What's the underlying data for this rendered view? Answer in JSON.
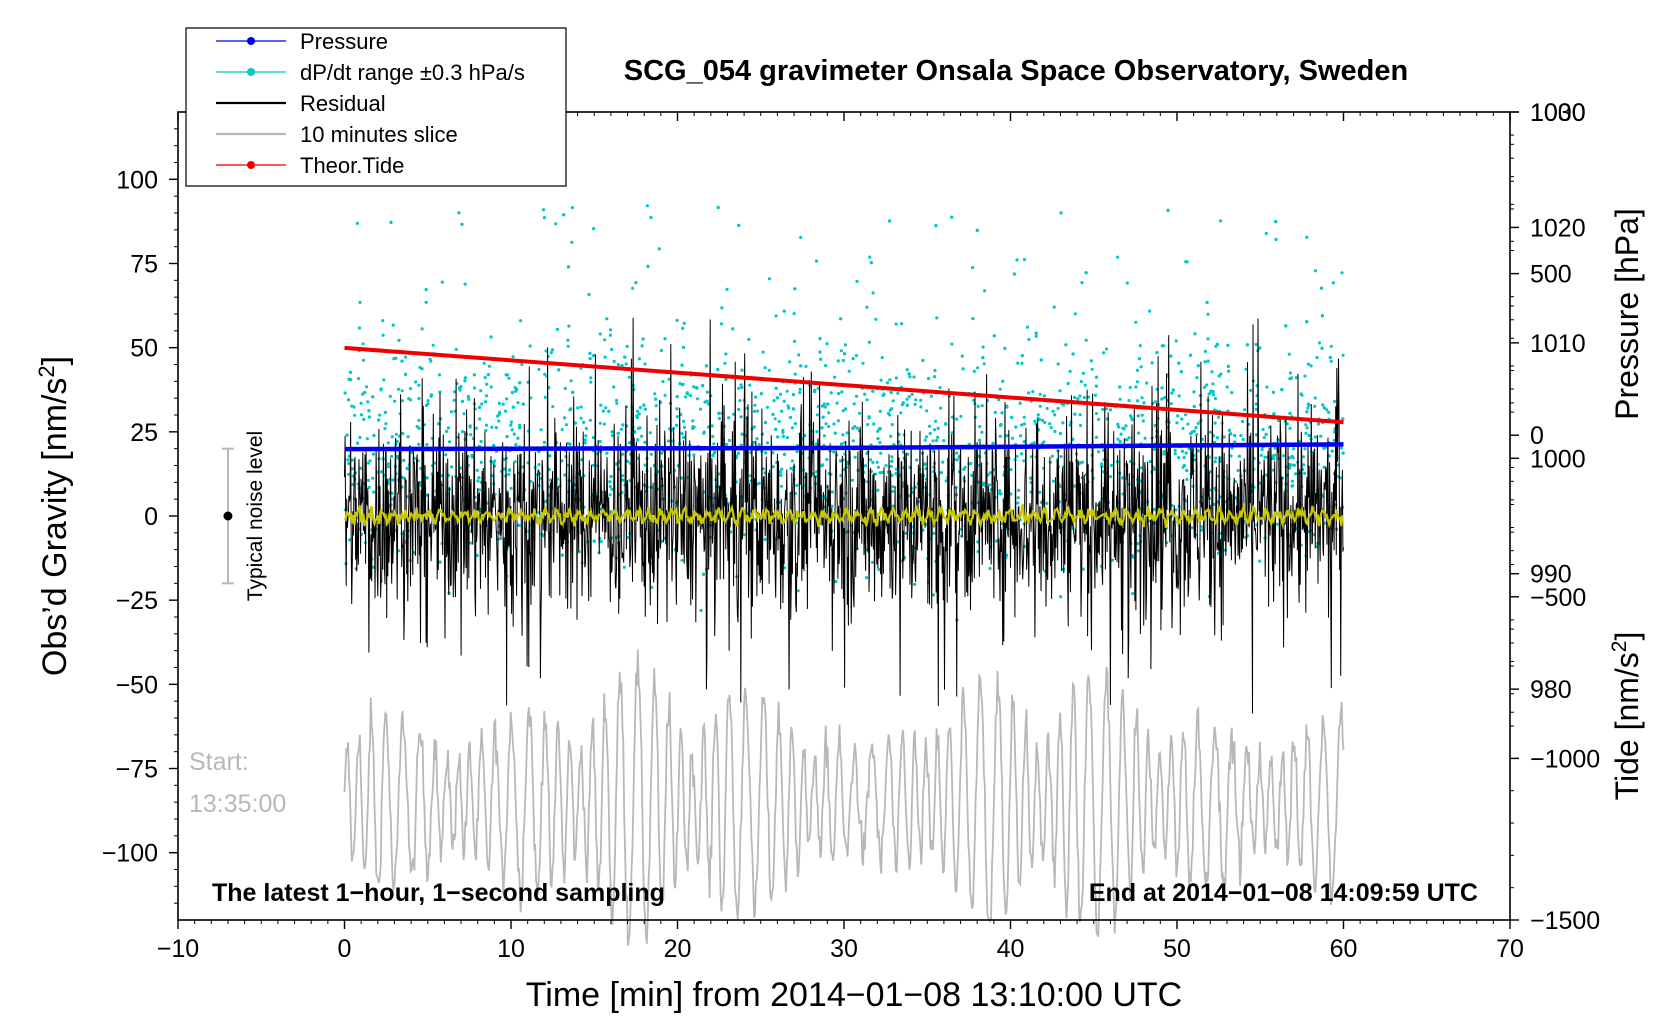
{
  "chart_data": {
    "type": "line",
    "title": "SCG_054 gravimeter Onsala Space Observatory, Sweden",
    "xlabel": "Time [min] from 2014−01−08 13:10:00 UTC",
    "ylabel": "Obs’d Gravity [nm/s",
    "ylabel_unit_sup": "2",
    "ylabel_close": "]",
    "y2label": "Pressure [hPa]",
    "y3label": "Tide [nm/s",
    "y3label_unit_sup": "2",
    "y3label_close": "]",
    "xlim": [
      -10,
      70
    ],
    "ylim": [
      -120,
      120
    ],
    "pressure_ylim": [
      960,
      1030
    ],
    "tide_ylim": [
      -1500,
      1000
    ],
    "x_ticks": [
      "−10",
      "0",
      "10",
      "20",
      "30",
      "40",
      "50",
      "60",
      "70"
    ],
    "x_tick_values": [
      -10,
      0,
      10,
      20,
      30,
      40,
      50,
      60,
      70
    ],
    "y_ticks": [
      "100",
      "75",
      "50",
      "25",
      "0",
      "−25",
      "−50",
      "−75",
      "−100"
    ],
    "y_tick_values": [
      100,
      75,
      50,
      25,
      0,
      -25,
      -50,
      -75,
      -100
    ],
    "pressure_ticks": [
      "1030",
      "1020",
      "1010",
      "1000",
      "990",
      "980"
    ],
    "pressure_tick_values": [
      1030,
      1020,
      1010,
      1000,
      990,
      980
    ],
    "tide_ticks": [
      "1000",
      "500",
      "0",
      "−500",
      "−1000",
      "−1500"
    ],
    "tide_tick_values": [
      1000,
      500,
      0,
      -500,
      -1000,
      -1500
    ],
    "legend": [
      {
        "label": "Pressure",
        "color": "#0000ee",
        "style": "line-dot"
      },
      {
        "label": "dP/dt range ±0.3 hPa/s",
        "color": "#00c8c8",
        "style": "line-dot"
      },
      {
        "label": "Residual",
        "color": "#000000",
        "style": "line"
      },
      {
        "label": "10 minutes slice",
        "color": "#b8b8b8",
        "style": "line"
      },
      {
        "label": "Theor.Tide",
        "color": "#ee0000",
        "style": "line-dot"
      }
    ],
    "legend_position": "top-left",
    "series": [
      {
        "name": "Pressure",
        "axis": "pressure",
        "x": [
          0,
          30,
          60
        ],
        "values": [
          1000.8,
          1000.9,
          1001.2
        ],
        "color": "#0000ee"
      },
      {
        "name": "dP/dt range ±0.3 hPa/s",
        "axis": "pressure",
        "x_range": [
          0,
          60
        ],
        "center": 1001,
        "spread": 9,
        "color": "#00c8c8"
      },
      {
        "name": "Residual",
        "axis": "gravity",
        "x_range": [
          0,
          60
        ],
        "amplitude": 30,
        "color": "#000000"
      },
      {
        "name": "Residual smoothed",
        "axis": "gravity",
        "x_range": [
          0,
          60
        ],
        "amplitude": 2,
        "color": "#c8c800"
      },
      {
        "name": "10 minutes slice",
        "axis": "gravity",
        "x_range": [
          0,
          60
        ],
        "center": -85,
        "amplitude": 40,
        "color": "#b8b8b8"
      },
      {
        "name": "Theor.Tide",
        "axis": "tide",
        "x": [
          0,
          60
        ],
        "values": [
          270,
          40
        ],
        "color": "#ee0000"
      }
    ],
    "noise_bar": {
      "label": "Typical noise level",
      "x": -7,
      "center": 0,
      "low": -20,
      "high": 20
    },
    "annotations": {
      "start_label": "Start:",
      "start_time": "13:35:00",
      "bottom_left": "The latest 1−hour, 1−second sampling",
      "bottom_right": "End at 2014−01−08 14:09:59 UTC"
    },
    "colors": {
      "pressure": "#0000ee",
      "dpdt": "#00c8c8",
      "residual": "#000000",
      "smoothed": "#c8c800",
      "slice": "#b8b8b8",
      "tide": "#ee0000",
      "noise_bar": "#b8b8b8"
    }
  }
}
